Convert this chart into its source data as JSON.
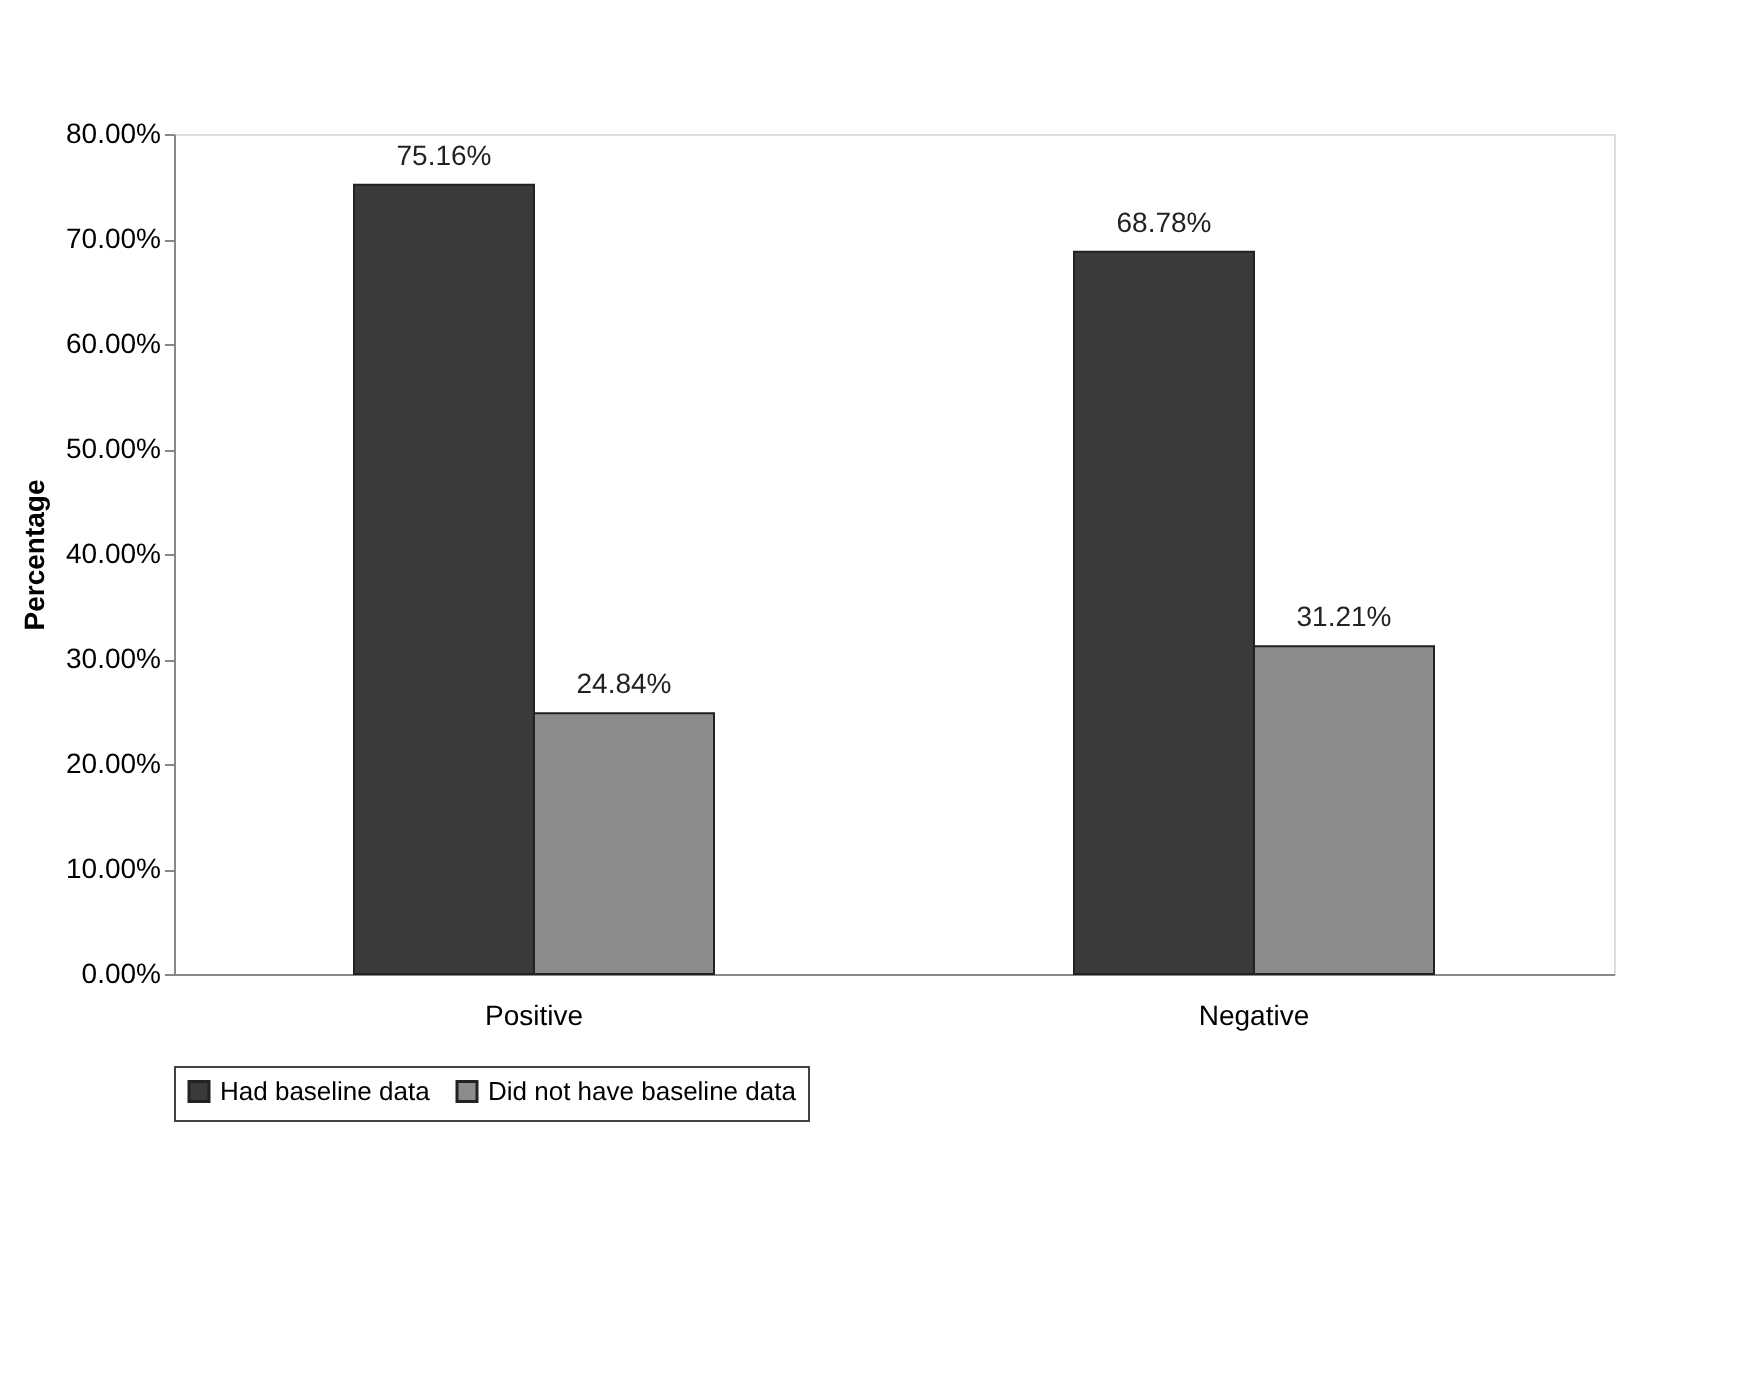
{
  "chart_data": {
    "type": "bar",
    "ylabel": "Percentage",
    "categories": [
      "Positive",
      "Negative"
    ],
    "series": [
      {
        "name": "Had baseline data",
        "color": "#3a3a3a",
        "values": [
          75.16,
          68.78
        ],
        "value_labels": [
          "75.16%",
          "68.78%"
        ]
      },
      {
        "name": "Did not have baseline data",
        "color": "#8c8c8c",
        "values": [
          24.84,
          31.21
        ],
        "value_labels": [
          "24.84%",
          "31.21%"
        ]
      }
    ],
    "ylim": [
      0,
      80
    ],
    "yticks": [
      {
        "value": 0,
        "label": "0.00%"
      },
      {
        "value": 10,
        "label": "10.00%"
      },
      {
        "value": 20,
        "label": "20.00%"
      },
      {
        "value": 30,
        "label": "30.00%"
      },
      {
        "value": 40,
        "label": "40.00%"
      },
      {
        "value": 50,
        "label": "50.00%"
      },
      {
        "value": 60,
        "label": "60.00%"
      },
      {
        "value": 70,
        "label": "70.00%"
      },
      {
        "value": 80,
        "label": "80.00%"
      }
    ],
    "grid": false,
    "legend": "bottom"
  }
}
